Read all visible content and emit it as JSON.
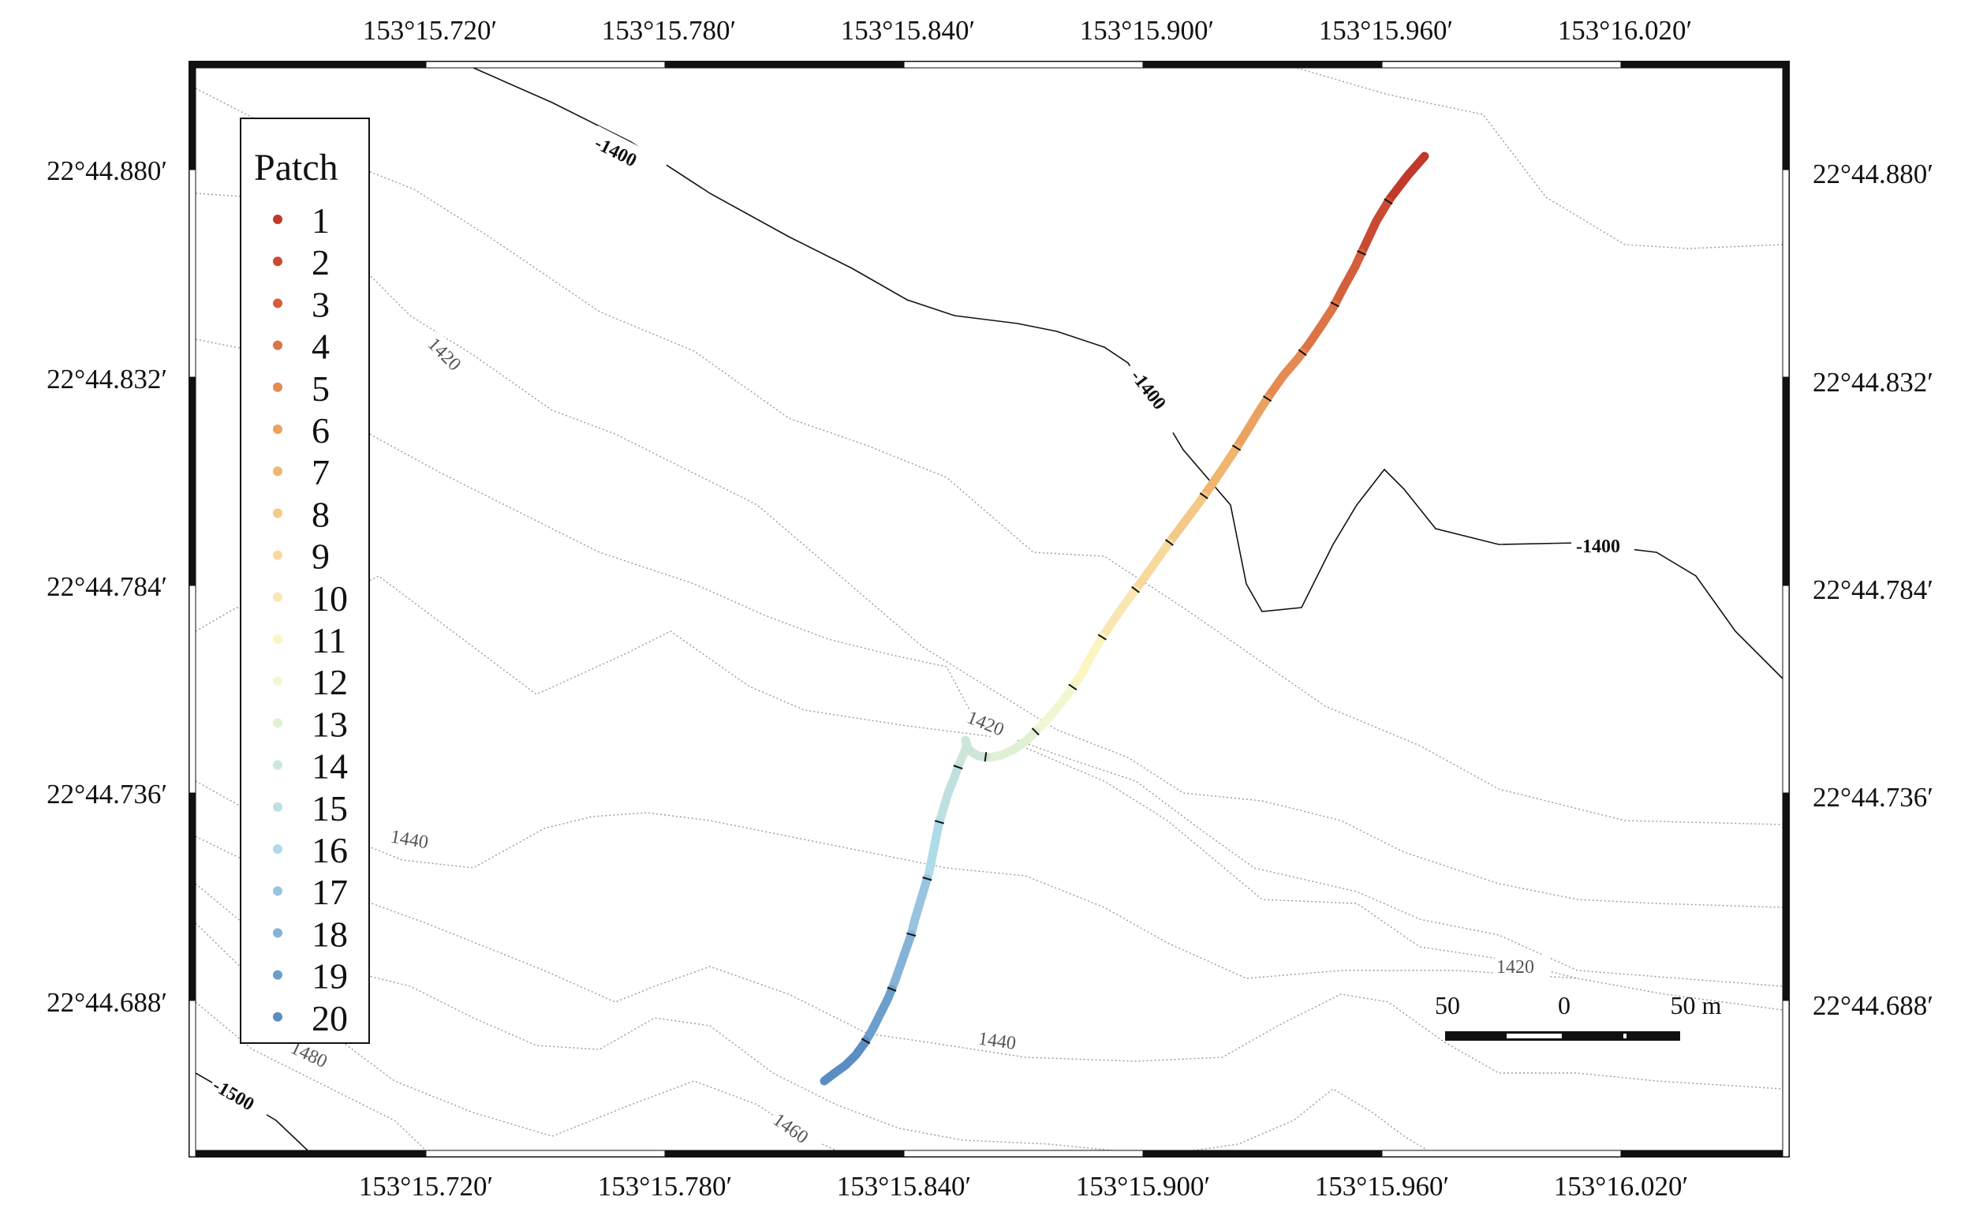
{
  "top_lon_labels": [
    "153°15.720′",
    "153°15.780′",
    "153°15.840′",
    "153°15.900′",
    "153°15.960′",
    "153°16.020′"
  ],
  "bottom_lon_labels": [
    "153°15.720′",
    "153°15.780′",
    "153°15.840′",
    "153°15.900′",
    "153°15.960′",
    "153°16.020′"
  ],
  "left_lat_labels": [
    "22°44.880′",
    "22°44.832′",
    "22°44.784′",
    "22°44.736′",
    "22°44.688′"
  ],
  "right_lat_labels": [
    "22°44.880′",
    "22°44.832′",
    "22°44.784′",
    "22°44.736′",
    "22°44.688′"
  ],
  "legend": {
    "title": "Patch",
    "items": [
      {
        "label": "1",
        "color": "#c0392b"
      },
      {
        "label": "2",
        "color": "#c94a32"
      },
      {
        "label": "3",
        "color": "#d35f3c"
      },
      {
        "label": "4",
        "color": "#dc7446"
      },
      {
        "label": "5",
        "color": "#e48a52"
      },
      {
        "label": "6",
        "color": "#eba260"
      },
      {
        "label": "7",
        "color": "#f0b56f"
      },
      {
        "label": "8",
        "color": "#f4c886"
      },
      {
        "label": "9",
        "color": "#f7d99e"
      },
      {
        "label": "10",
        "color": "#f9e6b2"
      },
      {
        "label": "11",
        "color": "#fbf5c0"
      },
      {
        "label": "12",
        "color": "#f2f7d2"
      },
      {
        "label": "13",
        "color": "#dff0d4"
      },
      {
        "label": "14",
        "color": "#cde6d8"
      },
      {
        "label": "15",
        "color": "#bfe0e0"
      },
      {
        "label": "16",
        "color": "#addbe8"
      },
      {
        "label": "17",
        "color": "#98c4e0"
      },
      {
        "label": "18",
        "color": "#84b3d7"
      },
      {
        "label": "19",
        "color": "#6c9fcc"
      },
      {
        "label": "20",
        "color": "#5a8ec3"
      }
    ]
  },
  "contour_labels": {
    "major_1400": "-1400",
    "major_1500": "-1500",
    "minor_1420": "1420",
    "minor_1440": "1440",
    "minor_1460": "1460",
    "minor_1480": "1480"
  },
  "scale_bar": {
    "left": "50",
    "mid": "0",
    "right": "50 m"
  }
}
